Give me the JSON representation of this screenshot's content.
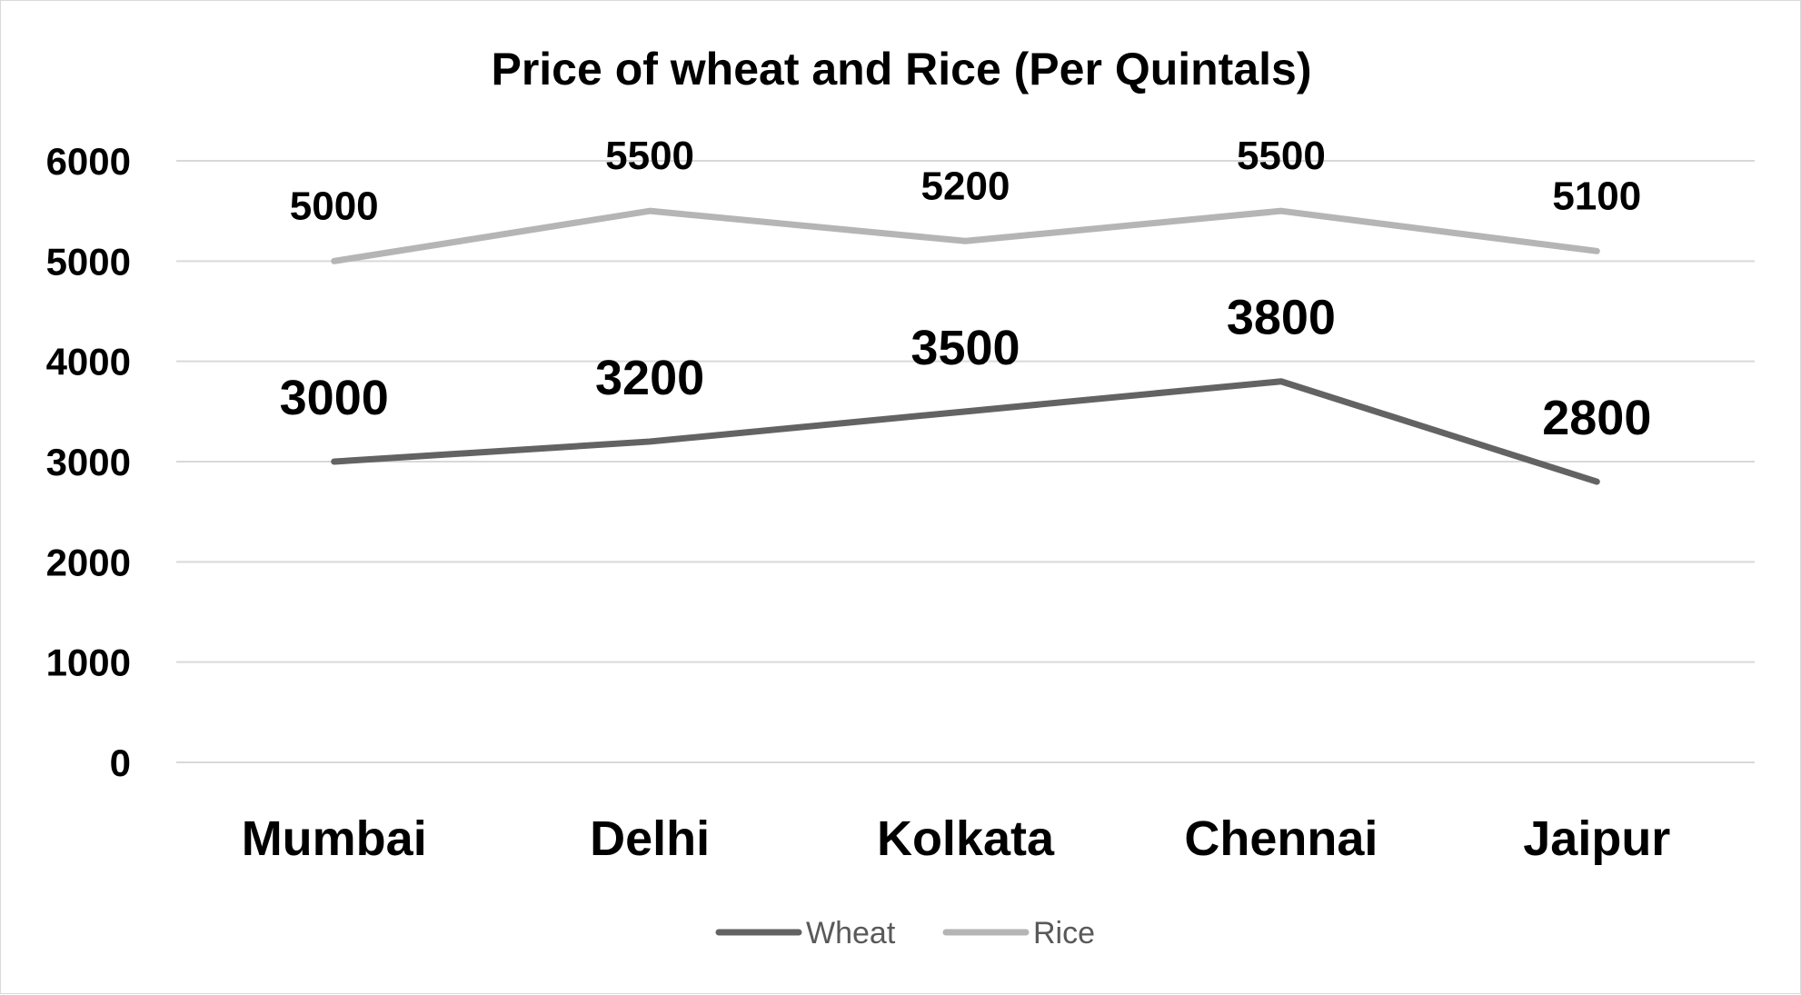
{
  "chart_data": {
    "type": "line",
    "title": "Price of wheat and Rice (Per Quintals)",
    "categories": [
      "Mumbai",
      "Delhi",
      "Kolkata",
      "Chennai",
      "Jaipur"
    ],
    "series": [
      {
        "name": "Wheat",
        "values": [
          3000,
          3200,
          3500,
          3800,
          2800
        ],
        "color": "#636363"
      },
      {
        "name": "Rice",
        "values": [
          5000,
          5500,
          5200,
          5500,
          5100
        ],
        "color": "#b5b5b5"
      }
    ],
    "ylim": [
      0,
      6000
    ],
    "yticks": [
      0,
      1000,
      2000,
      3000,
      4000,
      5000,
      6000
    ],
    "grid": true,
    "legend": "bottom",
    "data_labels": true
  }
}
